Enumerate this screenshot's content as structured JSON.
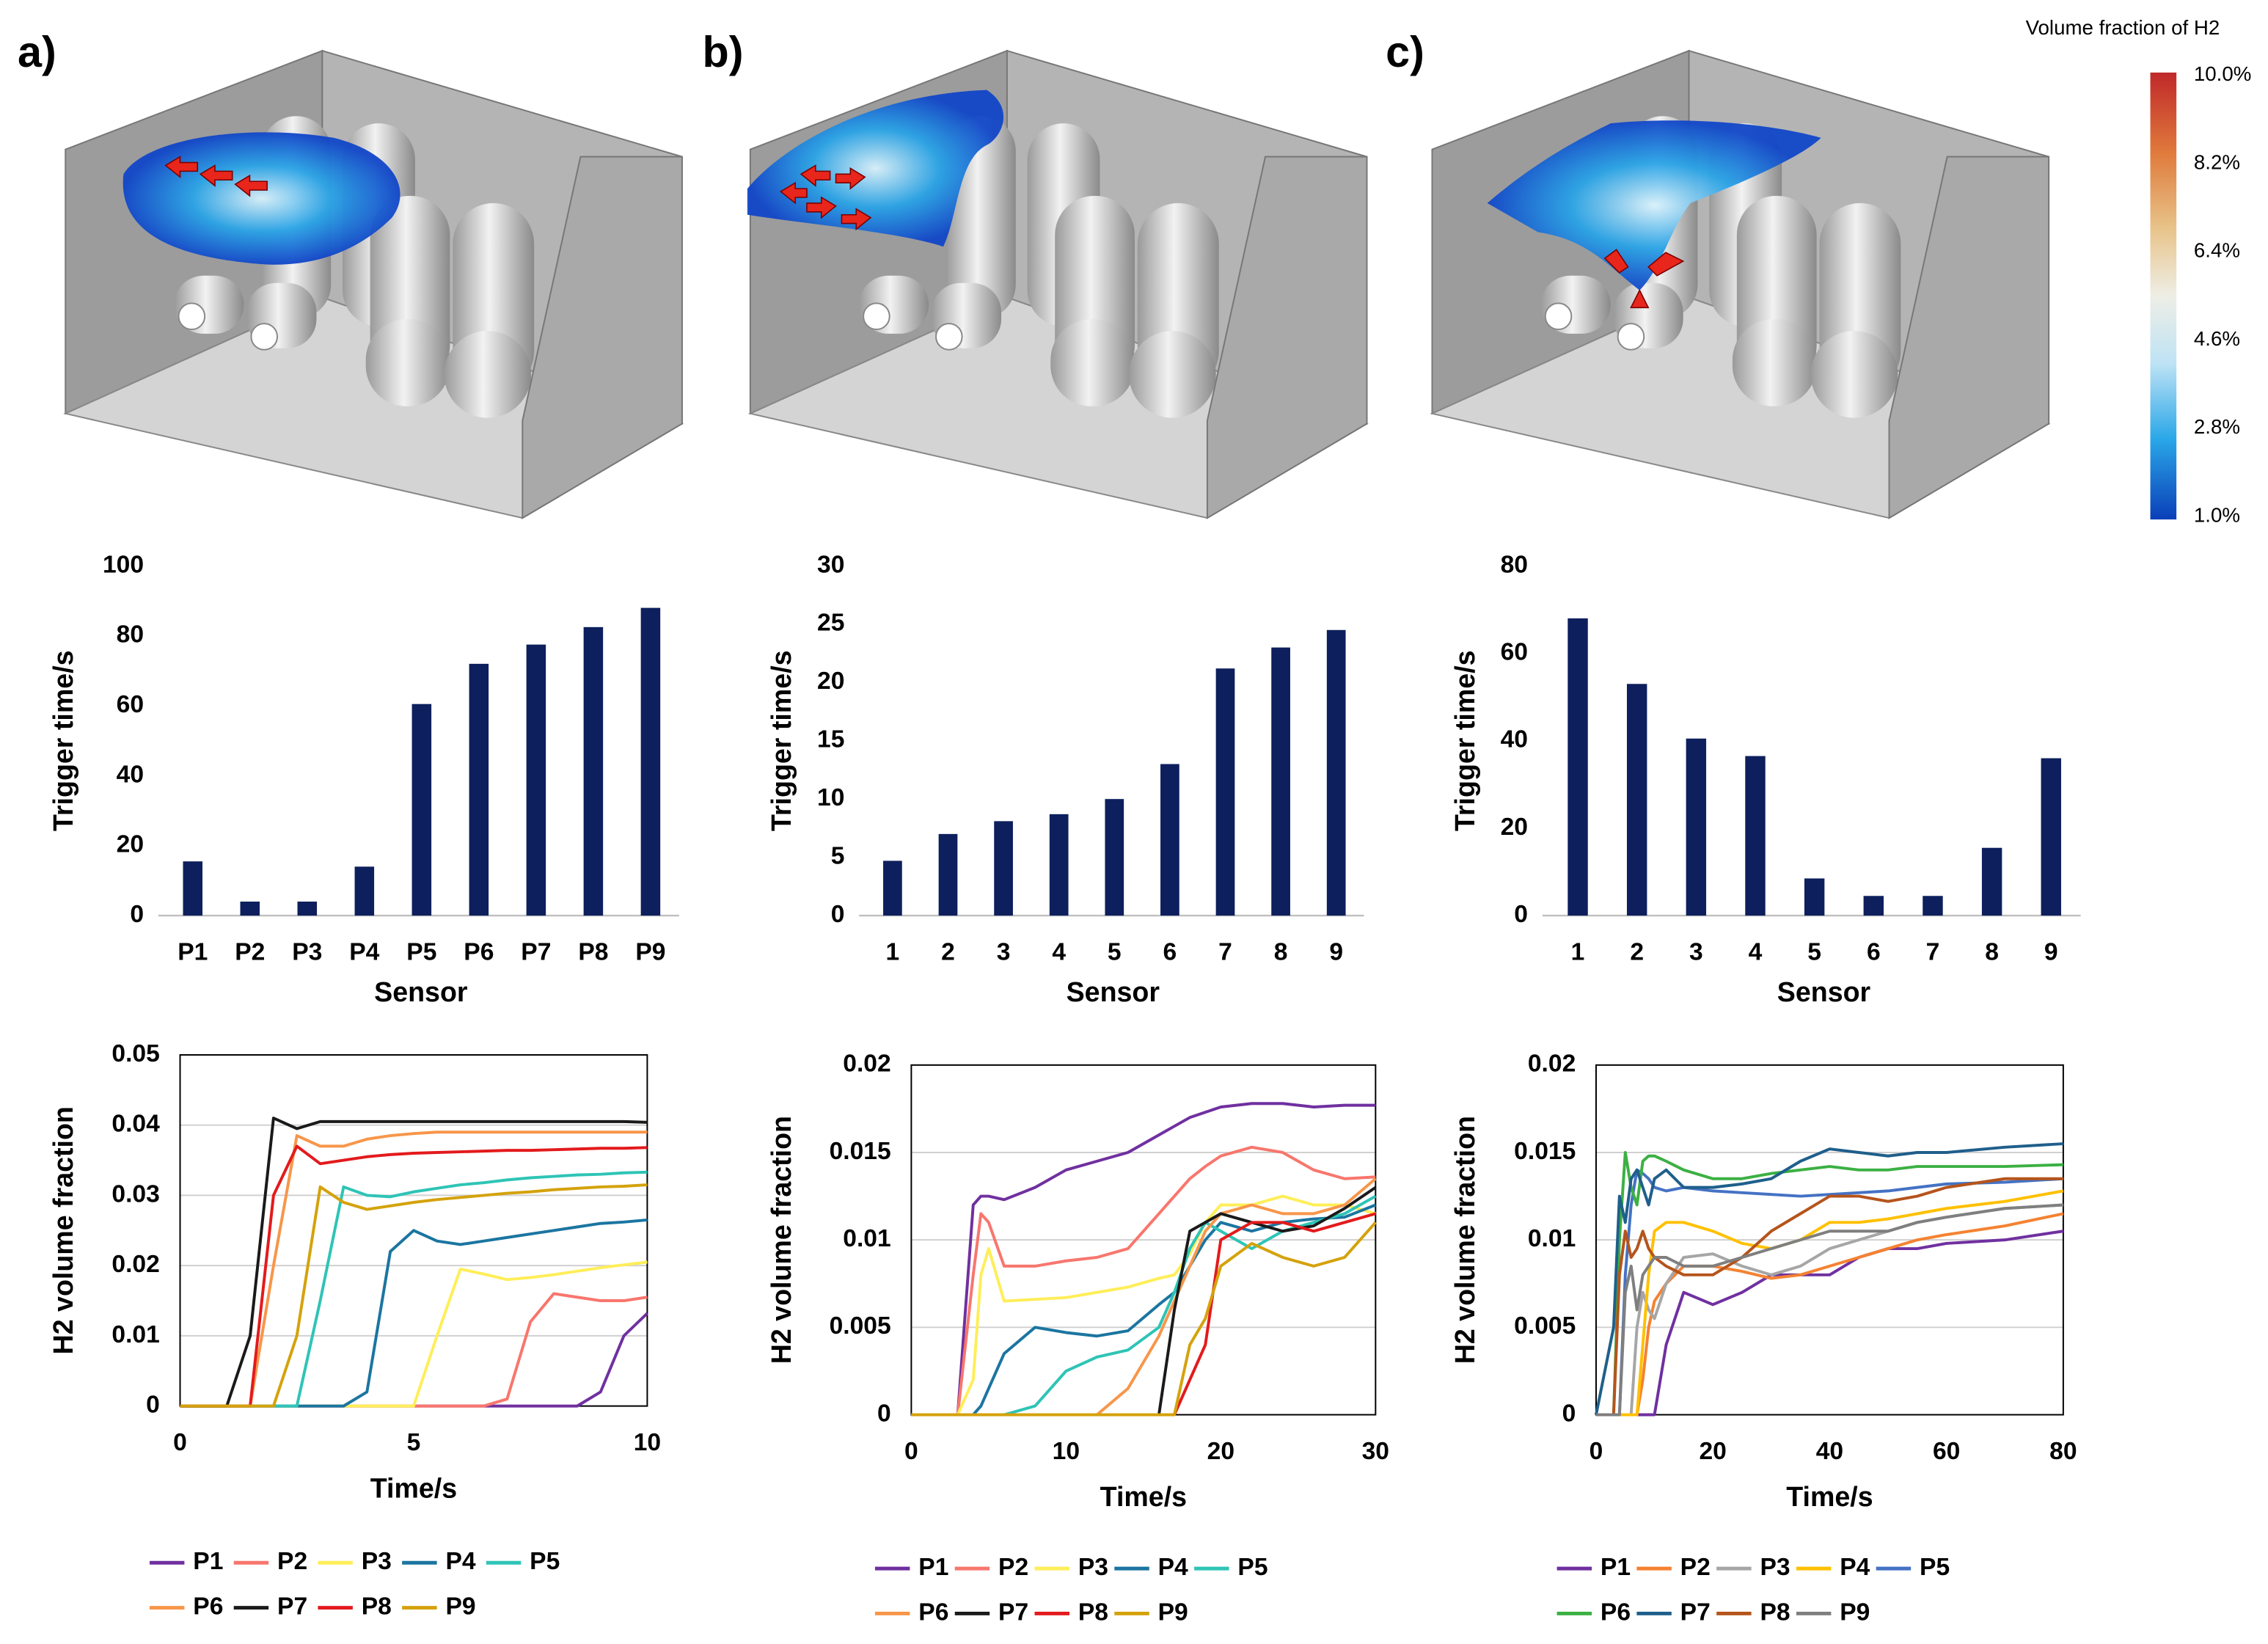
{
  "panel_labels": [
    "a)",
    "b)",
    "c)"
  ],
  "colorbar": {
    "title": "Volume  fraction of H2",
    "labels": [
      "10.0%",
      "8.2%",
      "6.4%",
      "4.6%",
      "2.8%",
      "1.0%"
    ]
  },
  "chart_data": [
    {
      "type": "bar",
      "ylabel": "Trigger time/s",
      "xlabel": "Sensor",
      "color": "#0d1f5c",
      "grid": false,
      "categories": [
        "P1",
        "P2",
        "P3",
        "P4",
        "P5",
        "P6",
        "P7",
        "P8",
        "P9"
      ],
      "values": [
        15.5,
        4,
        4,
        14,
        60.5,
        72,
        77.5,
        82.5,
        88
      ],
      "ylim": [
        0,
        100
      ],
      "yticks": [
        0,
        20,
        40,
        60,
        80,
        100
      ]
    },
    {
      "type": "bar",
      "ylabel": "Trigger time/s",
      "xlabel": "Sensor",
      "color": "#0d1f5c",
      "grid": false,
      "categories": [
        "1",
        "2",
        "3",
        "4",
        "5",
        "6",
        "7",
        "8",
        "9"
      ],
      "values": [
        4.7,
        7,
        8.1,
        8.7,
        10,
        13,
        21.2,
        23,
        24.5
      ],
      "ylim": [
        0,
        30
      ],
      "yticks": [
        0,
        5,
        10,
        15,
        20,
        25,
        30
      ]
    },
    {
      "type": "bar",
      "ylabel": "Trigger time/s",
      "xlabel": "Sensor",
      "color": "#0d1f5c",
      "grid": false,
      "categories": [
        "1",
        "2",
        "3",
        "4",
        "5",
        "6",
        "7",
        "8",
        "9"
      ],
      "values": [
        68,
        53,
        40.5,
        36.5,
        8.5,
        4.5,
        4.5,
        15.5,
        36
      ],
      "ylim": [
        0,
        80
      ],
      "yticks": [
        0,
        20,
        40,
        60,
        80
      ]
    },
    {
      "type": "line",
      "ylabel": "H2 volume fraction",
      "xlabel": "Time/s",
      "grid": true,
      "xlim": [
        0,
        10
      ],
      "xticks": [
        0,
        5,
        10
      ],
      "ylim": [
        0,
        0.05
      ],
      "yticks": [
        0,
        0.01,
        0.02,
        0.03,
        0.04,
        0.05
      ],
      "x": [
        0,
        0.5,
        1,
        1.5,
        2,
        2.5,
        3,
        3.5,
        4,
        4.5,
        5,
        5.5,
        6,
        6.5,
        7,
        7.5,
        8,
        8.5,
        9,
        9.5,
        10
      ],
      "series": [
        {
          "name": "P1",
          "color": "#7030a0",
          "values": [
            0,
            0,
            0,
            0,
            0,
            0,
            0,
            0,
            0,
            0,
            0,
            0,
            0,
            0,
            0,
            0,
            0,
            0,
            0.002,
            0.01,
            0.0132
          ]
        },
        {
          "name": "P2",
          "color": "#f8766d",
          "values": [
            0,
            0,
            0,
            0,
            0,
            0,
            0,
            0,
            0,
            0,
            0,
            0,
            0,
            0,
            0.001,
            0.012,
            0.016,
            0.0155,
            0.015,
            0.015,
            0.0155
          ]
        },
        {
          "name": "P3",
          "color": "#ffee58",
          "values": [
            0,
            0,
            0,
            0,
            0,
            0,
            0,
            0,
            0,
            0,
            0,
            0.01,
            0.0195,
            0.0188,
            0.018,
            0.0183,
            0.0187,
            0.0192,
            0.0197,
            0.0201,
            0.0205
          ]
        },
        {
          "name": "P4",
          "color": "#1b75a0",
          "values": [
            0,
            0,
            0,
            0,
            0,
            0,
            0,
            0,
            0.002,
            0.022,
            0.025,
            0.0235,
            0.023,
            0.0235,
            0.024,
            0.0245,
            0.025,
            0.0255,
            0.026,
            0.0262,
            0.0265
          ]
        },
        {
          "name": "P5",
          "color": "#2ec4b6",
          "values": [
            0,
            0,
            0,
            0,
            0,
            0,
            0.015,
            0.0312,
            0.03,
            0.0298,
            0.0305,
            0.031,
            0.0315,
            0.0318,
            0.0322,
            0.0325,
            0.0327,
            0.0329,
            0.033,
            0.0332,
            0.0333
          ]
        },
        {
          "name": "P6",
          "color": "#f7964a",
          "values": [
            0,
            0,
            0,
            0,
            0.02,
            0.0385,
            0.037,
            0.037,
            0.038,
            0.0385,
            0.0388,
            0.039,
            0.039,
            0.039,
            0.039,
            0.039,
            0.039,
            0.039,
            0.039,
            0.039,
            0.039
          ]
        },
        {
          "name": "P7",
          "color": "#1a1a1a",
          "values": [
            0,
            0,
            0,
            0.01,
            0.041,
            0.0395,
            0.0405,
            0.0405,
            0.0405,
            0.0405,
            0.0405,
            0.0405,
            0.0405,
            0.0405,
            0.0405,
            0.0405,
            0.0405,
            0.0405,
            0.0405,
            0.0405,
            0.0404
          ]
        },
        {
          "name": "P8",
          "color": "#e31a1c",
          "values": [
            0,
            0,
            0,
            0,
            0.03,
            0.037,
            0.0345,
            0.035,
            0.0355,
            0.0358,
            0.036,
            0.0361,
            0.0362,
            0.0363,
            0.0364,
            0.0364,
            0.0365,
            0.0366,
            0.0367,
            0.0367,
            0.0368
          ]
        },
        {
          "name": "P9",
          "color": "#d4a20c",
          "values": [
            0,
            0,
            0,
            0,
            0,
            0.01,
            0.0312,
            0.029,
            0.028,
            0.0285,
            0.029,
            0.0294,
            0.0297,
            0.03,
            0.0303,
            0.0305,
            0.0308,
            0.031,
            0.0312,
            0.0313,
            0.0315
          ]
        }
      ]
    },
    {
      "type": "line",
      "ylabel": "H2 volume fraction",
      "xlabel": "Time/s",
      "grid": true,
      "xlim": [
        0,
        30
      ],
      "xticks": [
        0,
        10,
        20,
        30
      ],
      "ylim": [
        0,
        0.02
      ],
      "yticks": [
        0,
        0.005,
        0.01,
        0.015,
        0.02
      ],
      "x": [
        0,
        2,
        3,
        4,
        4.5,
        5,
        6,
        8,
        10,
        12,
        14,
        16,
        17,
        18,
        19,
        20,
        22,
        24,
        26,
        28,
        30
      ],
      "series": [
        {
          "name": "P1",
          "color": "#7030a0",
          "values": [
            0,
            0,
            0,
            0.012,
            0.0125,
            0.0125,
            0.0123,
            0.013,
            0.014,
            0.0145,
            0.015,
            0.016,
            0.0165,
            0.017,
            0.0173,
            0.0176,
            0.0178,
            0.0178,
            0.0176,
            0.0177,
            0.0177
          ]
        },
        {
          "name": "P2",
          "color": "#f8766d",
          "values": [
            0,
            0,
            0,
            0.008,
            0.0115,
            0.011,
            0.0085,
            0.0085,
            0.0088,
            0.009,
            0.0095,
            0.0115,
            0.0125,
            0.0135,
            0.0142,
            0.0148,
            0.0153,
            0.015,
            0.014,
            0.0135,
            0.0136
          ]
        },
        {
          "name": "P3",
          "color": "#ffee58",
          "values": [
            0,
            0,
            0,
            0.002,
            0.008,
            0.0095,
            0.0065,
            0.0066,
            0.0067,
            0.007,
            0.0073,
            0.0078,
            0.008,
            0.0092,
            0.011,
            0.012,
            0.012,
            0.0125,
            0.012,
            0.012,
            0.0115
          ]
        },
        {
          "name": "P4",
          "color": "#1b75a0",
          "values": [
            0,
            0,
            0,
            0,
            0.0005,
            0.0015,
            0.0035,
            0.005,
            0.0047,
            0.0045,
            0.0048,
            0.0063,
            0.007,
            0.0085,
            0.01,
            0.011,
            0.0105,
            0.011,
            0.0112,
            0.0113,
            0.012
          ]
        },
        {
          "name": "P5",
          "color": "#2ec4b6",
          "values": [
            0,
            0,
            0,
            0,
            0,
            0,
            0,
            0.0005,
            0.0025,
            0.0033,
            0.0037,
            0.005,
            0.007,
            0.0095,
            0.011,
            0.0105,
            0.0095,
            0.0105,
            0.011,
            0.0115,
            0.0125
          ]
        },
        {
          "name": "P6",
          "color": "#f7964a",
          "values": [
            0,
            0,
            0,
            0,
            0,
            0,
            0,
            0,
            0,
            0,
            0.0015,
            0.0045,
            0.0065,
            0.0085,
            0.0105,
            0.0115,
            0.012,
            0.0115,
            0.0115,
            0.012,
            0.0135
          ]
        },
        {
          "name": "P7",
          "color": "#1a1a1a",
          "values": [
            0,
            0,
            0,
            0,
            0,
            0,
            0,
            0,
            0,
            0,
            0,
            0,
            0.006,
            0.0105,
            0.011,
            0.0115,
            0.011,
            0.0105,
            0.0108,
            0.0118,
            0.013
          ]
        },
        {
          "name": "P8",
          "color": "#e31a1c",
          "values": [
            0,
            0,
            0,
            0,
            0,
            0,
            0,
            0,
            0,
            0,
            0,
            0,
            0,
            0.002,
            0.004,
            0.01,
            0.011,
            0.011,
            0.0105,
            0.011,
            0.0115
          ]
        },
        {
          "name": "P9",
          "color": "#d4a20c",
          "values": [
            0,
            0,
            0,
            0,
            0,
            0,
            0,
            0,
            0,
            0,
            0,
            0,
            0,
            0.004,
            0.0055,
            0.0085,
            0.0098,
            0.009,
            0.0085,
            0.009,
            0.011
          ]
        }
      ]
    },
    {
      "type": "line",
      "ylabel": "H2 volume fraction",
      "xlabel": "Time/s",
      "grid": true,
      "xlim": [
        0,
        80
      ],
      "xticks": [
        0,
        20,
        40,
        60,
        80
      ],
      "ylim": [
        0,
        0.02
      ],
      "yticks": [
        0,
        0.005,
        0.01,
        0.015,
        0.02
      ],
      "x": [
        0,
        3,
        4,
        5,
        6,
        7,
        8,
        9,
        10,
        12,
        15,
        20,
        25,
        30,
        35,
        40,
        45,
        50,
        55,
        60,
        70,
        80
      ],
      "series": [
        {
          "name": "P1",
          "color": "#7030a0",
          "values": [
            0,
            0,
            0,
            0,
            0,
            0,
            0,
            0,
            0,
            0.004,
            0.007,
            0.0063,
            0.007,
            0.008,
            0.008,
            0.008,
            0.009,
            0.0095,
            0.0095,
            0.0098,
            0.01,
            0.0105
          ]
        },
        {
          "name": "P2",
          "color": "#f58231",
          "values": [
            0,
            0,
            0,
            0,
            0,
            0,
            0.002,
            0.005,
            0.0065,
            0.0075,
            0.0085,
            0.0085,
            0.0082,
            0.0078,
            0.008,
            0.0085,
            0.009,
            0.0095,
            0.01,
            0.0103,
            0.0108,
            0.0115
          ]
        },
        {
          "name": "P3",
          "color": "#a6a6a6",
          "values": [
            0,
            0,
            0,
            0,
            0,
            0.005,
            0.007,
            0.006,
            0.0055,
            0.0075,
            0.009,
            0.0092,
            0.0085,
            0.008,
            0.0085,
            0.0095,
            0.01,
            0.0105,
            0.011,
            0.0113,
            0.0118,
            0.012
          ]
        },
        {
          "name": "P4",
          "color": "#ffc000",
          "values": [
            0,
            0,
            0,
            0,
            0,
            0,
            0.004,
            0.008,
            0.0105,
            0.011,
            0.011,
            0.0105,
            0.0098,
            0.0095,
            0.01,
            0.011,
            0.011,
            0.0112,
            0.0115,
            0.0118,
            0.0122,
            0.0128
          ]
        },
        {
          "name": "P5",
          "color": "#4472c4",
          "values": [
            0,
            0,
            0,
            0.008,
            0.012,
            0.014,
            0.0138,
            0.0135,
            0.013,
            0.0128,
            0.013,
            0.0128,
            0.0127,
            0.0126,
            0.0125,
            0.0126,
            0.0127,
            0.0128,
            0.013,
            0.0132,
            0.0133,
            0.0135
          ]
        },
        {
          "name": "P6",
          "color": "#3cb043",
          "values": [
            0,
            0,
            0.01,
            0.015,
            0.013,
            0.012,
            0.0145,
            0.0148,
            0.0148,
            0.0145,
            0.014,
            0.0135,
            0.0135,
            0.0138,
            0.014,
            0.0142,
            0.014,
            0.014,
            0.0142,
            0.0142,
            0.0142,
            0.0143
          ]
        },
        {
          "name": "P7",
          "color": "#1f5f8b",
          "values": [
            0,
            0.005,
            0.0125,
            0.011,
            0.0135,
            0.014,
            0.013,
            0.012,
            0.0135,
            0.014,
            0.013,
            0.013,
            0.0132,
            0.0135,
            0.0145,
            0.0152,
            0.015,
            0.0148,
            0.015,
            0.015,
            0.0153,
            0.0155
          ]
        },
        {
          "name": "P8",
          "color": "#b5541c",
          "values": [
            0,
            0,
            0.008,
            0.0105,
            0.009,
            0.0095,
            0.0105,
            0.0095,
            0.009,
            0.0085,
            0.008,
            0.008,
            0.009,
            0.0105,
            0.0115,
            0.0125,
            0.0125,
            0.0122,
            0.0125,
            0.013,
            0.0135,
            0.0135
          ]
        },
        {
          "name": "P9",
          "color": "#7f7f7f",
          "values": [
            0,
            0,
            0,
            0.007,
            0.0085,
            0.006,
            0.008,
            0.0085,
            0.009,
            0.009,
            0.0085,
            0.0085,
            0.009,
            0.0095,
            0.01,
            0.0105,
            0.0105,
            0.0105,
            0.011,
            0.0113,
            0.0118,
            0.012
          ]
        }
      ]
    }
  ]
}
